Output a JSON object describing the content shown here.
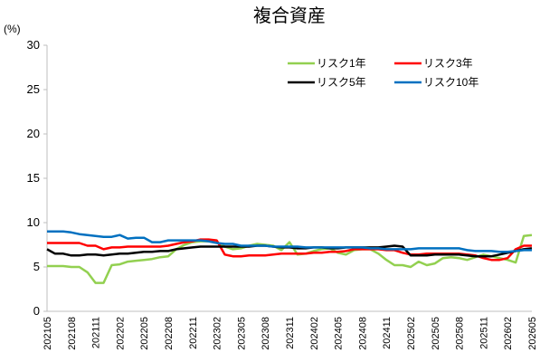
{
  "chart_data": {
    "type": "line",
    "title": "複合資産",
    "y_label": "(%)",
    "categories": [
      "202105",
      null,
      null,
      "202108",
      null,
      null,
      "202111",
      null,
      null,
      "202202",
      null,
      null,
      "202205",
      null,
      null,
      "202208",
      null,
      null,
      "202211",
      null,
      null,
      "202302",
      null,
      null,
      "202305",
      null,
      null,
      "202308",
      null,
      null,
      "202311",
      null,
      null,
      "202402",
      null,
      null,
      "202405",
      null,
      null,
      "202408",
      null,
      null,
      "202411",
      null,
      null,
      "202502",
      null,
      null,
      "202505",
      null,
      null,
      "202508",
      null,
      null,
      "202511",
      null,
      null,
      "202602",
      null,
      null,
      "202605"
    ],
    "series": [
      {
        "name": "リスク1年",
        "color": "#92d050",
        "values": [
          5.1,
          5.1,
          5.1,
          5.0,
          5.0,
          4.4,
          3.2,
          3.2,
          5.2,
          5.3,
          5.6,
          5.7,
          5.8,
          5.9,
          6.1,
          6.2,
          7.0,
          7.5,
          7.8,
          7.9,
          7.9,
          7.8,
          7.3,
          7.0,
          7.1,
          7.4,
          7.6,
          7.5,
          7.4,
          6.9,
          7.8,
          6.4,
          6.5,
          6.8,
          7.0,
          7.1,
          6.6,
          6.4,
          6.9,
          7.0,
          7.0,
          6.5,
          5.8,
          5.2,
          5.2,
          5.0,
          5.6,
          5.2,
          5.4,
          6.0,
          6.1,
          6.0,
          5.8,
          6.1,
          6.4,
          6.2,
          6.0,
          5.8,
          5.5,
          8.5,
          8.6
        ]
      },
      {
        "name": "リスク3年",
        "color": "#ff0000",
        "values": [
          7.7,
          7.7,
          7.7,
          7.7,
          7.7,
          7.4,
          7.4,
          7.0,
          7.2,
          7.2,
          7.3,
          7.3,
          7.3,
          7.3,
          7.3,
          7.4,
          7.6,
          7.8,
          7.9,
          8.1,
          8.1,
          8.0,
          6.4,
          6.2,
          6.2,
          6.3,
          6.3,
          6.3,
          6.4,
          6.5,
          6.5,
          6.5,
          6.5,
          6.6,
          6.6,
          6.7,
          6.7,
          6.8,
          7.0,
          7.0,
          7.0,
          7.0,
          6.9,
          6.9,
          6.6,
          6.4,
          6.4,
          6.5,
          6.5,
          6.5,
          6.5,
          6.5,
          6.4,
          6.3,
          6.0,
          5.8,
          5.8,
          6.0,
          7.0,
          7.4,
          7.4
        ]
      },
      {
        "name": "リスク5年",
        "color": "#000000",
        "values": [
          7.0,
          6.5,
          6.5,
          6.3,
          6.3,
          6.4,
          6.4,
          6.3,
          6.4,
          6.5,
          6.5,
          6.6,
          6.7,
          6.7,
          6.8,
          6.8,
          7.0,
          7.1,
          7.2,
          7.3,
          7.3,
          7.3,
          7.3,
          7.3,
          7.3,
          7.3,
          7.4,
          7.4,
          7.3,
          7.2,
          7.2,
          7.1,
          7.1,
          7.2,
          7.2,
          7.1,
          7.1,
          7.2,
          7.2,
          7.2,
          7.2,
          7.2,
          7.3,
          7.4,
          7.3,
          6.3,
          6.3,
          6.3,
          6.4,
          6.4,
          6.4,
          6.4,
          6.3,
          6.2,
          6.2,
          6.2,
          6.4,
          6.6,
          6.8,
          7.0,
          7.1
        ]
      },
      {
        "name": "リスク10年",
        "color": "#0070c0",
        "values": [
          9.0,
          9.0,
          9.0,
          8.9,
          8.7,
          8.6,
          8.5,
          8.4,
          8.4,
          8.6,
          8.2,
          8.3,
          8.3,
          7.8,
          7.8,
          8.0,
          8.0,
          8.0,
          8.0,
          8.0,
          7.9,
          7.7,
          7.6,
          7.6,
          7.4,
          7.4,
          7.4,
          7.4,
          7.3,
          7.3,
          7.3,
          7.3,
          7.2,
          7.2,
          7.2,
          7.2,
          7.2,
          7.2,
          7.2,
          7.2,
          7.1,
          7.1,
          7.0,
          7.0,
          7.0,
          7.0,
          7.1,
          7.1,
          7.1,
          7.1,
          7.1,
          7.1,
          6.9,
          6.8,
          6.8,
          6.8,
          6.7,
          6.7,
          6.8,
          6.9,
          6.9
        ]
      }
    ],
    "ylim": [
      0,
      30
    ],
    "yticks": [
      0,
      5,
      10,
      15,
      20,
      25,
      30
    ],
    "grid": false
  }
}
